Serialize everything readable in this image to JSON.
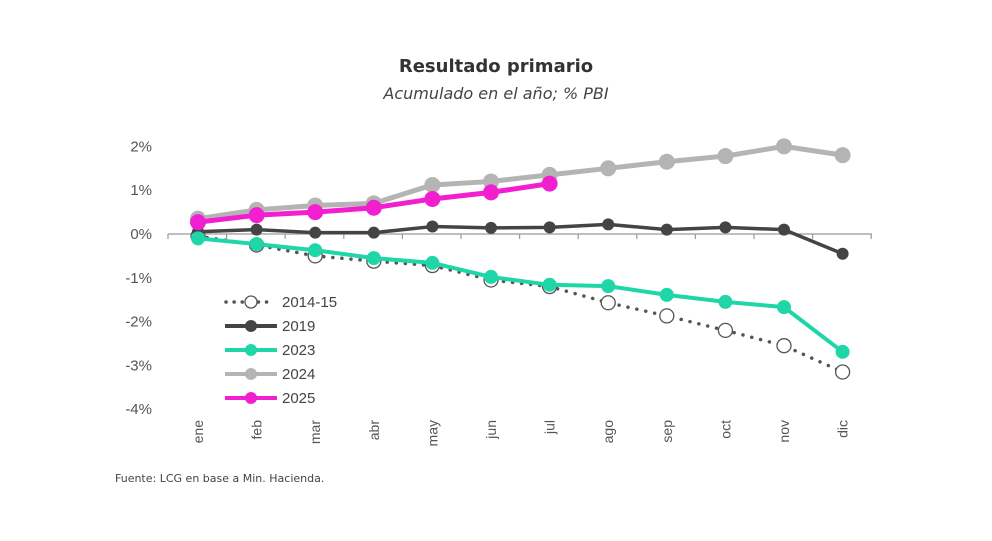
{
  "chart_data": {
    "type": "line",
    "title": "Resultado primario",
    "subtitle": "Acumulado en el año; % PBI",
    "xlabel": "",
    "ylabel": "",
    "categories": [
      "ene",
      "feb",
      "mar",
      "abr",
      "may",
      "jun",
      "jul",
      "ago",
      "sep",
      "oct",
      "nov",
      "dic"
    ],
    "ylim": [
      -4,
      2
    ],
    "yticks": [
      2,
      1,
      0,
      -1,
      -2,
      -3,
      -4
    ],
    "ytick_labels": [
      "2%",
      "1%",
      "0%",
      "-1%",
      "-2%",
      "-3%",
      "-4%"
    ],
    "grid": false,
    "legend_position": "bottom-left",
    "series": [
      {
        "name": "2014-15",
        "color": "#555555",
        "style": "dotted-open",
        "values": [
          -0.05,
          -0.25,
          -0.5,
          -0.62,
          -0.72,
          -1.05,
          -1.2,
          -1.57,
          -1.87,
          -2.2,
          -2.55,
          -3.15
        ]
      },
      {
        "name": "2019",
        "color": "#444444",
        "style": "solid",
        "values": [
          0.05,
          0.1,
          0.03,
          0.03,
          0.17,
          0.14,
          0.15,
          0.22,
          0.1,
          0.15,
          0.1,
          -0.45
        ]
      },
      {
        "name": "2023",
        "color": "#1ed6a8",
        "style": "solid",
        "values": [
          -0.1,
          -0.23,
          -0.37,
          -0.55,
          -0.66,
          -0.98,
          -1.16,
          -1.19,
          -1.39,
          -1.55,
          -1.67,
          -2.69
        ]
      },
      {
        "name": "2024",
        "color": "#b4b4b4",
        "style": "solid",
        "values": [
          0.35,
          0.55,
          0.65,
          0.7,
          1.12,
          1.2,
          1.35,
          1.5,
          1.65,
          1.78,
          2.0,
          1.8
        ]
      },
      {
        "name": "2025",
        "color": "#f21fd0",
        "style": "solid",
        "values": [
          0.27,
          0.43,
          0.5,
          0.6,
          0.8,
          0.95,
          1.15,
          null,
          null,
          null,
          null,
          null
        ]
      }
    ]
  },
  "source": "Fuente: LCG en base a Min. Hacienda."
}
